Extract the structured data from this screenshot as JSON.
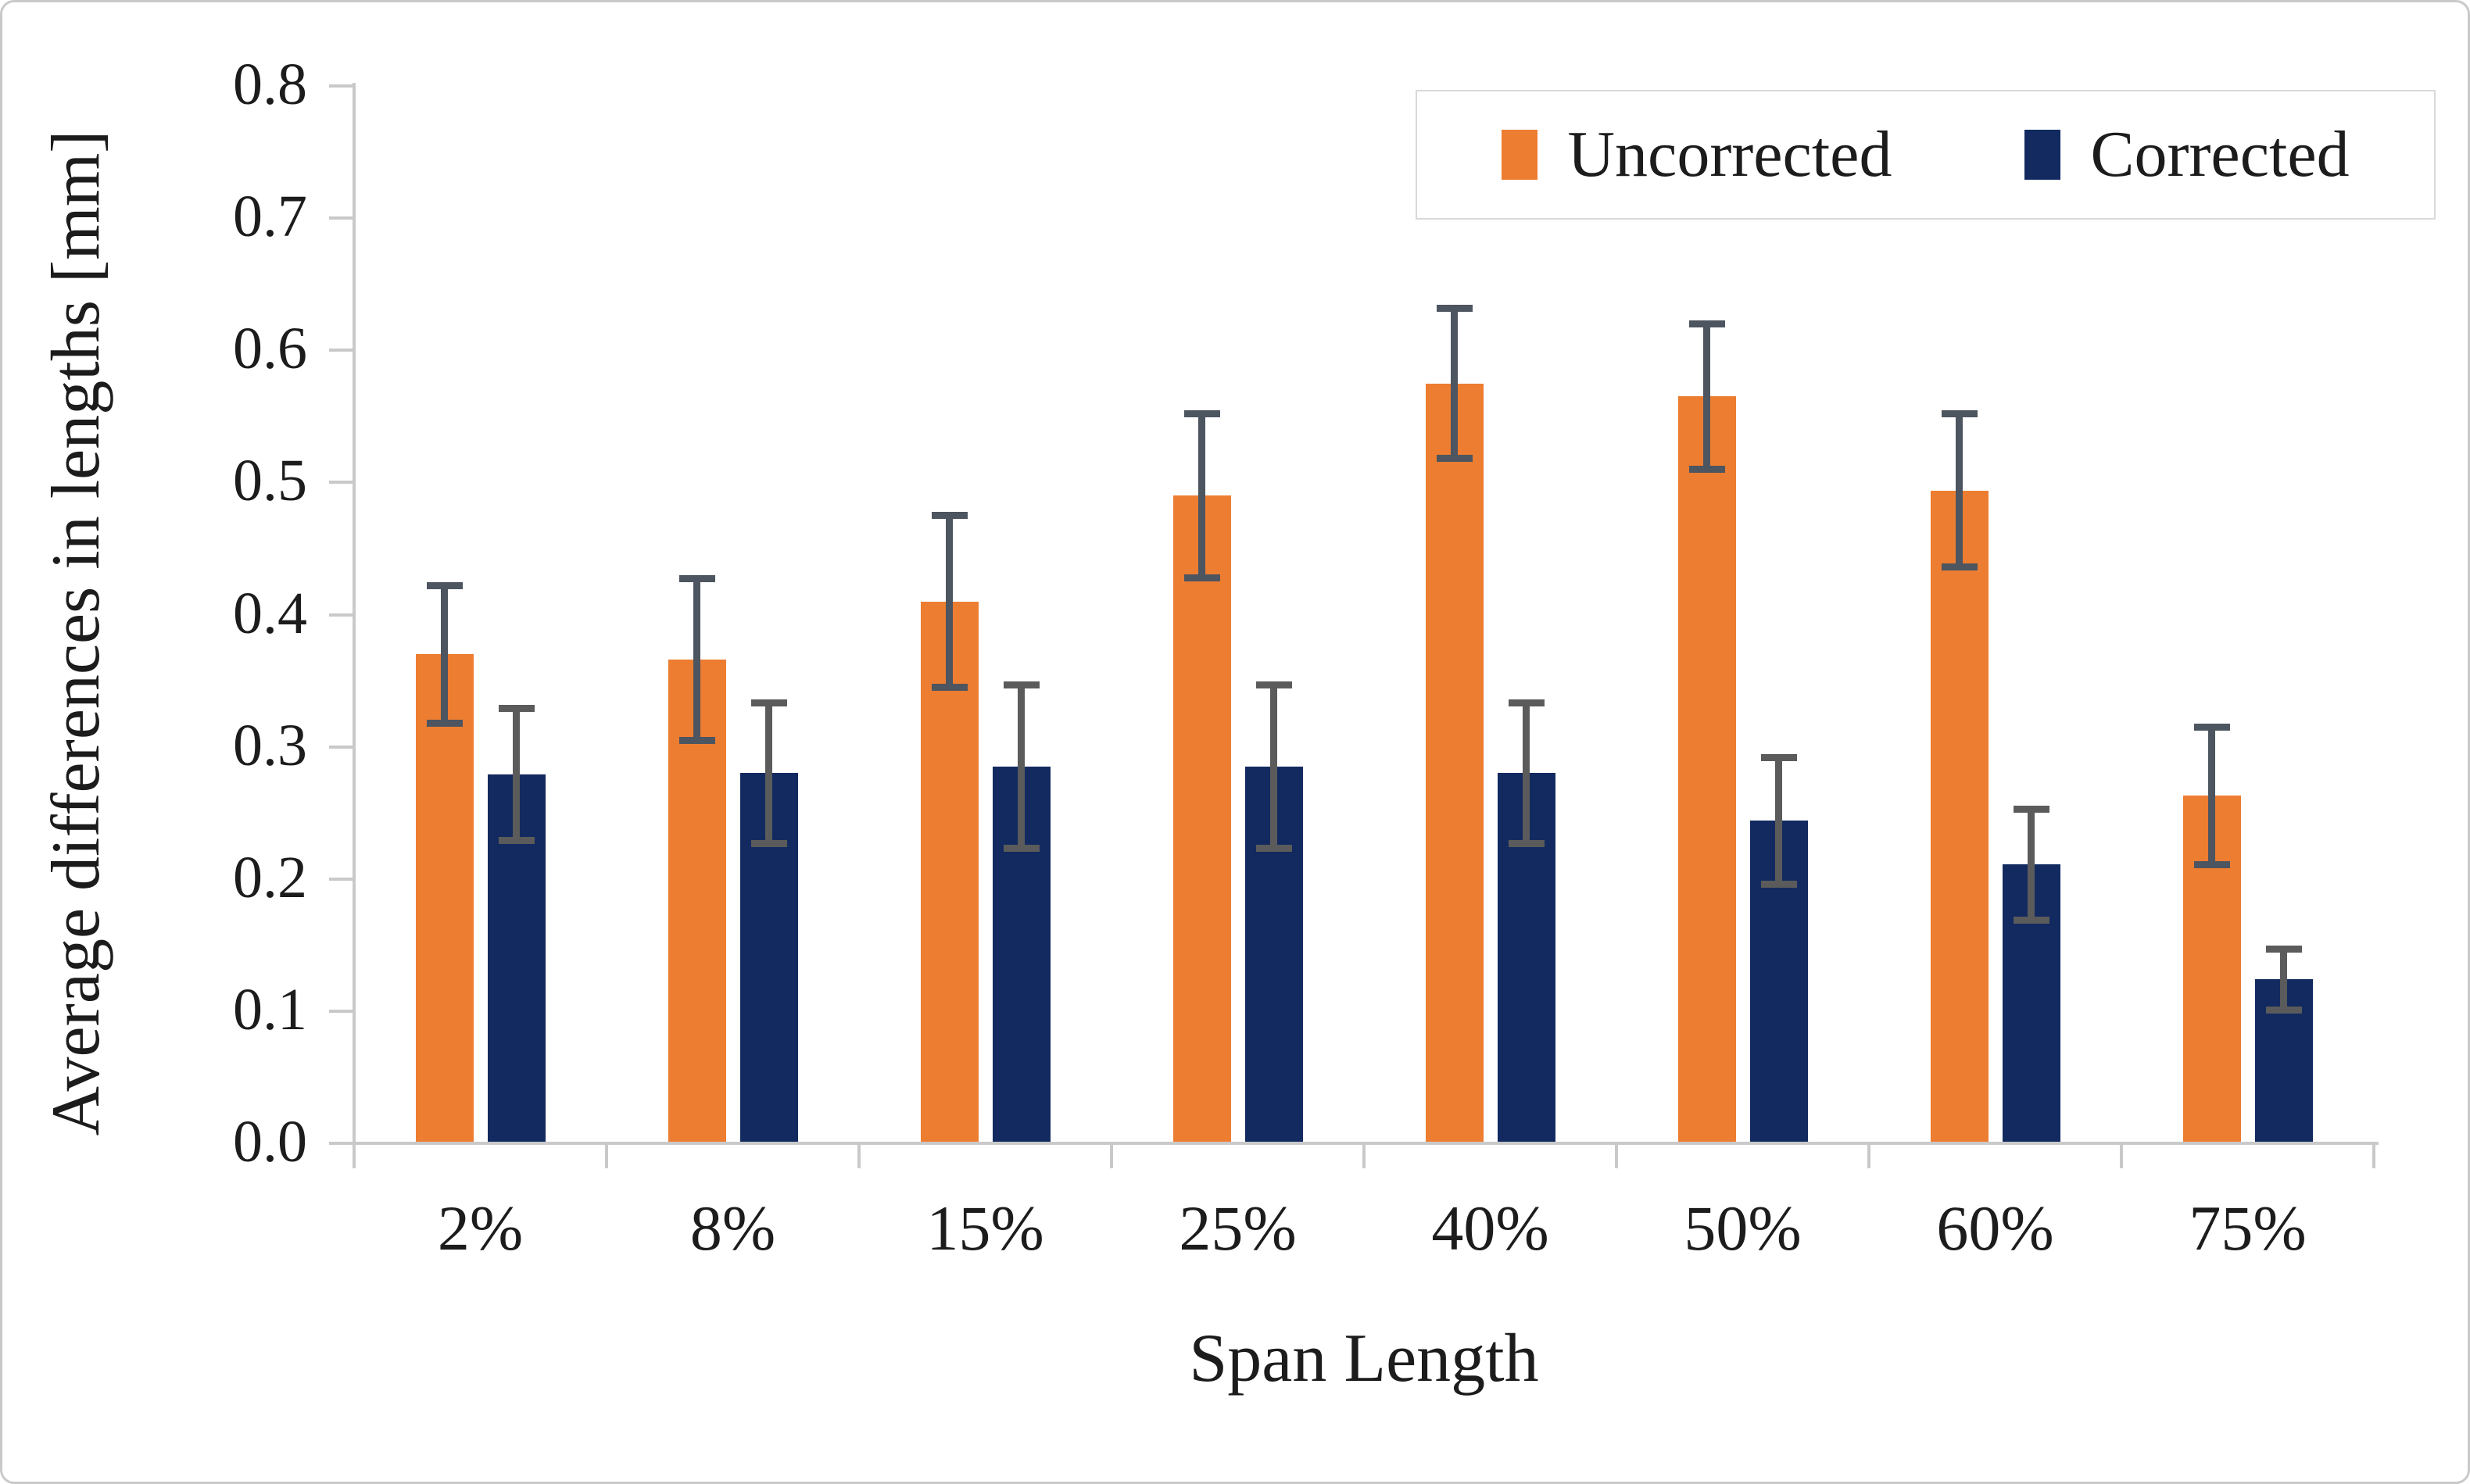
{
  "chart_data": {
    "type": "bar",
    "title": "",
    "categories": [
      "2%",
      "8%",
      "15%",
      "25%",
      "40%",
      "50%",
      "60%",
      "75%"
    ],
    "series": [
      {
        "name": "Uncorrected",
        "color": "#ED7D31",
        "errorbar_color": "#4d5560",
        "values": [
          0.37,
          0.366,
          0.41,
          0.49,
          0.575,
          0.565,
          0.494,
          0.263
        ],
        "errors": [
          0.052,
          0.061,
          0.065,
          0.062,
          0.057,
          0.055,
          0.058,
          0.052
        ]
      },
      {
        "name": "Corrected",
        "color": "#122A60",
        "errorbar_color": "#5b5b5b",
        "values": [
          0.279,
          0.28,
          0.285,
          0.285,
          0.28,
          0.244,
          0.211,
          0.124
        ],
        "errors": [
          0.05,
          0.053,
          0.062,
          0.062,
          0.053,
          0.048,
          0.042,
          0.023
        ]
      }
    ],
    "xlabel": "Span Length",
    "ylabel": "Average differences in lengths [mm]",
    "ylim": [
      0,
      0.8
    ],
    "ytick_step": 0.1,
    "ytick_labels": [
      "0.0",
      "0.1",
      "0.2",
      "0.3",
      "0.4",
      "0.5",
      "0.6",
      "0.7",
      "0.8"
    ],
    "grid": false,
    "legend_position": "top-right",
    "axis_color": "#c9c9c9",
    "background_color": "#ffffff"
  }
}
